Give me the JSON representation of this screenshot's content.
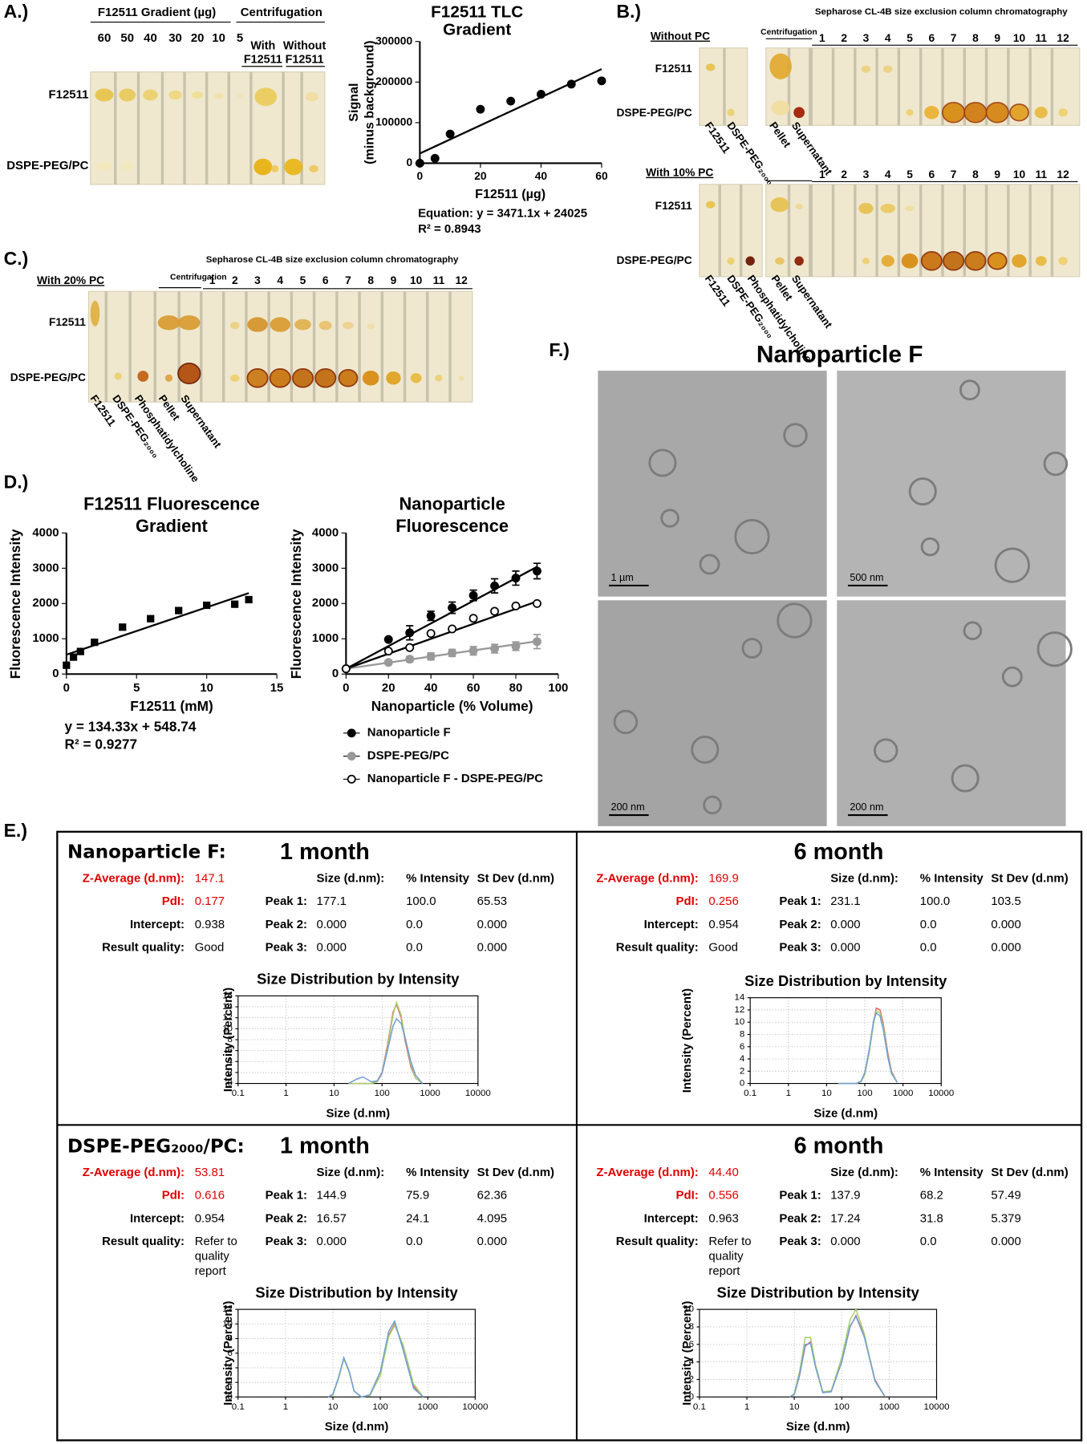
{
  "panel_a": {
    "label": "A.)",
    "gradient_header": "F12511 Gradient (µg)",
    "centrifugation_header": "Centrifugation",
    "lanes": [
      "60",
      "50",
      "40",
      "30",
      "20",
      "10",
      "5"
    ],
    "centrifugation_lanes": [
      [
        "With",
        "F12511"
      ],
      [
        "Without",
        "F12511"
      ]
    ],
    "rows": [
      "F12511",
      "DSPE-PEG/PC"
    ]
  },
  "panel_b": {
    "label": "B.)",
    "title": "Sepharose CL-4B size exclusion column chromatography",
    "groups": [
      {
        "condition": "Without PC",
        "centrifugation": "Centrifugation",
        "fractions": [
          "1",
          "2",
          "3",
          "4",
          "5",
          "6",
          "7",
          "8",
          "9",
          "10",
          "11",
          "12"
        ],
        "fraction_colors": [
          "#000000",
          "#000000",
          "#d40000",
          "#d40000",
          "#d40000",
          "#000000",
          "#000000",
          "#000000",
          "#000000",
          "#000000",
          "#000000",
          "#000000"
        ],
        "rows": [
          "F12511",
          "DSPE-PEG/PC"
        ],
        "lane_labels": [
          "F12511",
          "DSPE-PEG₂₀₀₀",
          "Pellet",
          "Supernatant"
        ]
      },
      {
        "condition": "With 10% PC",
        "fractions": [
          "1",
          "2",
          "3",
          "4",
          "5",
          "6",
          "7",
          "8",
          "9",
          "10",
          "11",
          "12"
        ],
        "fraction_colors": [
          "#000000",
          "#000000",
          "#d40000",
          "#d40000",
          "#d40000",
          "#000000",
          "#000000",
          "#000000",
          "#000000",
          "#000000",
          "#000000",
          "#000000"
        ],
        "rows": [
          "F12511",
          "DSPE-PEG/PC"
        ],
        "lane_labels": [
          "F12511",
          "DSPE-PEG₂₀₀₀",
          "Phosphatidylcholine",
          "Pellet",
          "Supernatant"
        ]
      }
    ]
  },
  "panel_c": {
    "label": "C.)",
    "title": "Sepharose CL-4B size exclusion column chromatography",
    "condition": "With 20% PC",
    "centrifugation": "Centrifugation",
    "fractions": [
      "1",
      "2",
      "3",
      "4",
      "5",
      "6",
      "7",
      "8",
      "9",
      "10",
      "11",
      "12"
    ],
    "fraction_colors": [
      "#000000",
      "#d40000",
      "#d40000",
      "#d40000",
      "#d40000",
      "#d40000",
      "#d40000",
      "#d40000",
      "#000000",
      "#000000",
      "#000000",
      "#000000"
    ],
    "rows": [
      "F12511",
      "DSPE-PEG/PC"
    ],
    "lane_labels": [
      "F12511",
      "DSPE-PEG₂₀₀₀",
      "Phosphatidylcholine",
      "Pellet",
      "Supernatant"
    ]
  },
  "panel_d": {
    "label": "D.)"
  },
  "panel_f": {
    "label": "F.)",
    "title": "Nanoparticle F",
    "scale_bars": [
      "1 µm",
      "500 nm",
      "200 nm",
      "200 nm"
    ]
  },
  "panel_e": {
    "label": "E.)",
    "blocks": [
      {
        "sample": "Nanoparticle F:",
        "time": "1 month",
        "z_average_label": "Z-Average (d.nm):",
        "z_average": "147.1",
        "pdi_label": "PdI:",
        "pdi": "0.177",
        "intercept_label": "Intercept:",
        "intercept": "0.938",
        "quality_label": "Result quality:",
        "quality": "Good",
        "quality_color": "#1a9c3c",
        "columns": [
          "Size (d.nm):",
          "% Intensity",
          "St Dev (d.nm)"
        ],
        "peaks": [
          [
            "Peak 1:",
            "177.1",
            "100.0",
            "65.53"
          ],
          [
            "Peak 2:",
            "0.000",
            "0.0",
            "0.000"
          ],
          [
            "Peak 3:",
            "0.000",
            "0.0",
            "0.000"
          ]
        ]
      },
      {
        "time": "6 month",
        "z_average_label": "Z-Average (d.nm):",
        "z_average": "169.9",
        "pdi_label": "PdI:",
        "pdi": "0.256",
        "intercept_label": "Intercept:",
        "intercept": "0.954",
        "quality_label": "Result quality:",
        "quality": "Good",
        "quality_color": "#1a9c3c",
        "columns": [
          "Size (d.nm):",
          "% Intensity",
          "St Dev (d.nm)"
        ],
        "peaks": [
          [
            "Peak 1:",
            "231.1",
            "100.0",
            "103.5"
          ],
          [
            "Peak 2:",
            "0.000",
            "0.0",
            "0.000"
          ],
          [
            "Peak 3:",
            "0.000",
            "0.0",
            "0.000"
          ]
        ]
      },
      {
        "sample": "DSPE-PEG₂₀₀₀/PC:",
        "time": "1 month",
        "z_average_label": "Z-Average (d.nm):",
        "z_average": "53.81",
        "pdi_label": "PdI:",
        "pdi": "0.616",
        "intercept_label": "Intercept:",
        "intercept": "0.954",
        "quality_label": "Result quality:",
        "quality": [
          "Refer to",
          "quality",
          "report"
        ],
        "quality_color": "#e00000",
        "columns": [
          "Size (d.nm):",
          "% Intensity",
          "St Dev (d.nm)"
        ],
        "peaks": [
          [
            "Peak 1:",
            "144.9",
            "75.9",
            "62.36"
          ],
          [
            "Peak 2:",
            "16.57",
            "24.1",
            "4.095"
          ],
          [
            "Peak 3:",
            "0.000",
            "0.0",
            "0.000"
          ]
        ]
      },
      {
        "time": "6 month",
        "z_average_label": "Z-Average (d.nm):",
        "z_average": "44.40",
        "pdi_label": "PdI:",
        "pdi": "0.556",
        "intercept_label": "Intercept:",
        "intercept": "0.963",
        "quality_label": "Result quality:",
        "quality": [
          "Refer to",
          "quality",
          "report"
        ],
        "quality_color": "#e00000",
        "columns": [
          "Size (d.nm):",
          "% Intensity",
          "St Dev (d.nm)"
        ],
        "peaks": [
          [
            "Peak 1:",
            "137.9",
            "68.2",
            "57.49"
          ],
          [
            "Peak 2:",
            "17.24",
            "31.8",
            "5.379"
          ],
          [
            "Peak 3:",
            "0.000",
            "0.0",
            "0.000"
          ]
        ]
      }
    ]
  },
  "chart_data": [
    {
      "type": "scatter",
      "title": [
        "F12511 TLC",
        "Gradient"
      ],
      "y_label": [
        "Signal",
        "(minus background)"
      ],
      "x_label": "F12511 (µg)",
      "annotations": [
        "Equation: y = 3471.1x + 24025",
        "R² = 0.8943"
      ],
      "x": [
        0,
        5,
        10,
        20,
        30,
        40,
        50,
        60
      ],
      "series": [
        {
          "color": "#000000",
          "marker": "circle",
          "values": [
            0,
            12000,
            72000,
            133000,
            153000,
            170000,
            195000,
            203000
          ],
          "fit": {
            "x": [
              0,
              60
            ],
            "values": [
              24025,
              232000
            ]
          }
        }
      ],
      "xlim": [
        0,
        60
      ],
      "xticks": [
        0,
        20,
        40,
        60
      ],
      "ylim": [
        0,
        300000
      ],
      "yticks": [
        0,
        100000,
        200000,
        300000
      ]
    },
    {
      "type": "scatter",
      "title": [
        "F12511 Fluorescence",
        "Gradient"
      ],
      "y_label": "Fluorescence Intensity",
      "x_label": "F12511 (mM)",
      "annotations": [
        "y = 134.33x + 548.74",
        "R² = 0.9277"
      ],
      "x": [
        0,
        0.5,
        1,
        2,
        4,
        6,
        8,
        10,
        12,
        13
      ],
      "series": [
        {
          "color": "#000000",
          "marker": "square",
          "values": [
            250,
            480,
            640,
            900,
            1330,
            1570,
            1800,
            1950,
            1980,
            2110
          ],
          "fit": {
            "x": [
              0,
              13
            ],
            "values": [
              549,
              2295
            ]
          }
        }
      ],
      "xlim": [
        0,
        15
      ],
      "xticks": [
        0,
        5,
        10,
        15
      ],
      "ylim": [
        0,
        4000
      ],
      "yticks": [
        0,
        1000,
        2000,
        3000,
        4000
      ]
    },
    {
      "type": "scatter",
      "title": [
        "Nanoparticle",
        "Fluorescence"
      ],
      "y_label": "Fluorescence Intensity",
      "x_label": "Nanoparticle (% Volume)",
      "legend": "bottom",
      "x": [
        0,
        20,
        30,
        40,
        50,
        60,
        70,
        80,
        90
      ],
      "series": [
        {
          "name": "Nanoparticle F",
          "color": "#000000",
          "fill": "#000000",
          "marker": "circle",
          "values": [
            150,
            980,
            1170,
            1650,
            1880,
            2230,
            2500,
            2720,
            2920
          ],
          "errors": [
            0,
            50,
            200,
            130,
            160,
            150,
            200,
            200,
            220
          ],
          "fit": {
            "x": [
              0,
              90
            ],
            "values": [
              150,
              3040
            ]
          }
        },
        {
          "name": "DSPE-PEG/PC",
          "color": "#999999",
          "fill": "#999999",
          "marker": "circle",
          "values": [
            150,
            330,
            420,
            500,
            600,
            660,
            720,
            790,
            920
          ],
          "errors": [
            0,
            60,
            80,
            100,
            100,
            120,
            120,
            120,
            200
          ],
          "fit": {
            "x": [
              0,
              90
            ],
            "values": [
              150,
              930
            ]
          }
        },
        {
          "name": "Nanoparticle F - DSPE-PEG/PC",
          "color": "#000000",
          "fill": "#ffffff",
          "marker": "circle",
          "values": [
            150,
            650,
            750,
            1150,
            1280,
            1580,
            1780,
            1930,
            2000
          ],
          "fit": {
            "x": [
              0,
              90
            ],
            "values": [
              150,
              2060
            ]
          }
        }
      ],
      "xlim": [
        0,
        100
      ],
      "xticks": [
        0,
        20,
        40,
        60,
        80,
        100
      ],
      "ylim": [
        0,
        4000
      ],
      "yticks": [
        0,
        1000,
        2000,
        3000,
        4000
      ]
    },
    {
      "type": "line",
      "log_x": true,
      "grid": true,
      "title": "Size Distribution by Intensity",
      "y_label": "Intensity (Percent)",
      "x_label": "Size (d.nm)",
      "x": [
        20,
        30,
        40,
        60,
        80,
        100,
        130,
        170,
        200,
        250,
        300,
        400,
        500,
        700
      ],
      "series": [
        {
          "color": "#e06666",
          "values": [
            0,
            0,
            0,
            0,
            0.5,
            2,
            7,
            13,
            14.5,
            12,
            8,
            3,
            1,
            0
          ]
        },
        {
          "color": "#a8cf6a",
          "values": [
            0,
            0,
            0,
            0,
            0.3,
            1.8,
            6.5,
            12.5,
            14.8,
            12.5,
            8.5,
            3.5,
            1,
            0
          ]
        },
        {
          "color": "#6f9fd8",
          "values": [
            0,
            0.8,
            1.2,
            0.3,
            0.5,
            1.8,
            6,
            10.5,
            11.8,
            11,
            8.5,
            4,
            1.5,
            0
          ]
        }
      ],
      "xlim": [
        0.1,
        10000
      ],
      "xticks": [
        0.1,
        1,
        10,
        100,
        1000,
        10000
      ],
      "ylim": [
        0,
        16
      ],
      "yticks": [
        0,
        2,
        4,
        6,
        8,
        10,
        12,
        14,
        16
      ]
    },
    {
      "type": "line",
      "log_x": true,
      "grid": true,
      "title": "Size Distribution by Intensity",
      "y_label": "Intensity (Percent)",
      "x_label": "Size (d.nm)",
      "x": [
        20,
        30,
        40,
        60,
        80,
        100,
        130,
        170,
        200,
        250,
        300,
        400,
        500,
        700
      ],
      "series": [
        {
          "color": "#e06666",
          "values": [
            0,
            0,
            0,
            0,
            0.3,
            1.5,
            5,
            10,
            12.3,
            12,
            10,
            5,
            2,
            0.2
          ]
        },
        {
          "color": "#a8cf6a",
          "values": [
            0,
            0,
            0,
            0,
            0.3,
            1.5,
            5,
            9.8,
            11.8,
            11.5,
            9.5,
            4.5,
            1.8,
            0.2
          ]
        },
        {
          "color": "#6f9fd8",
          "values": [
            0,
            0,
            0,
            0,
            0.4,
            1.8,
            5.5,
            10.3,
            11.5,
            11,
            9,
            4.3,
            1.6,
            0.2
          ]
        }
      ],
      "xlim": [
        0.1,
        10000
      ],
      "xticks": [
        0.1,
        1,
        10,
        100,
        1000,
        10000
      ],
      "ylim": [
        0,
        14
      ],
      "yticks": [
        0,
        2,
        4,
        6,
        8,
        10,
        12,
        14
      ]
    },
    {
      "type": "line",
      "log_x": true,
      "grid": true,
      "title": "Size Distribution by Intensity",
      "y_label": "Intensity (Percent)",
      "x_label": "Size (d.nm)",
      "x": [
        8,
        10,
        13,
        17,
        22,
        28,
        40,
        60,
        100,
        150,
        200,
        300,
        500,
        800
      ],
      "series": [
        {
          "color": "#e06666",
          "values": [
            0,
            0.3,
            2.5,
            5.3,
            3.5,
            0.8,
            0,
            0.2,
            3,
            8.5,
            10,
            7,
            1.5,
            0
          ]
        },
        {
          "color": "#a8cf6a",
          "values": [
            0,
            0.3,
            2.4,
            5.2,
            3.4,
            0.8,
            0,
            0.2,
            3,
            8.3,
            9.8,
            7.2,
            1.8,
            0
          ]
        },
        {
          "color": "#6f9fd8",
          "values": [
            0,
            0.4,
            2.6,
            5.4,
            3.5,
            0.8,
            0,
            0.3,
            3.5,
            9,
            10.4,
            6.5,
            1.2,
            0
          ]
        }
      ],
      "xlim": [
        0.1,
        10000
      ],
      "xticks": [
        0.1,
        1,
        10,
        100,
        1000,
        10000
      ],
      "ylim": [
        0,
        12
      ],
      "yticks": [
        0,
        2,
        4,
        6,
        8,
        10,
        12
      ]
    },
    {
      "type": "line",
      "log_x": true,
      "grid": true,
      "title": "Size Distribution by Intensity",
      "y_label": "Intensity (Percent)",
      "x_label": "Size (d.nm)",
      "x": [
        8,
        10,
        13,
        17,
        22,
        28,
        40,
        60,
        100,
        150,
        200,
        300,
        500,
        800
      ],
      "series": [
        {
          "color": "#e06666",
          "values": [
            0,
            0.3,
            2.5,
            5.8,
            6.3,
            3.5,
            0.5,
            0.6,
            4,
            8,
            9.3,
            7,
            2,
            0.1
          ]
        },
        {
          "color": "#a8cf6a",
          "values": [
            0,
            0.4,
            3,
            6.8,
            6.8,
            3.7,
            0.6,
            0.7,
            4.5,
            8.8,
            10,
            7.2,
            1.8,
            0.1
          ]
        },
        {
          "color": "#6f9fd8",
          "values": [
            0,
            0.3,
            2.6,
            6,
            6.1,
            3.4,
            0.5,
            0.6,
            4,
            8.1,
            9.2,
            6.8,
            1.9,
            0.1
          ]
        }
      ],
      "xlim": [
        0.1,
        10000
      ],
      "xticks": [
        0.1,
        1,
        10,
        100,
        1000,
        10000
      ],
      "ylim": [
        0,
        10
      ],
      "yticks": [
        0,
        2,
        4,
        6,
        8,
        10
      ]
    }
  ]
}
